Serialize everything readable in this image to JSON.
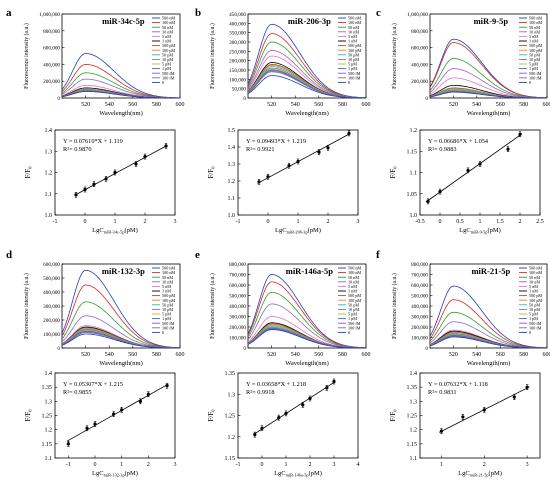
{
  "figure": {
    "spectra_ylabel": "Fluorescence intensity (a.u.)",
    "spectra_xlabel": "Wavelength(nm)",
    "fit_ylabel": "F/F",
    "fit_ylabel_sub": "0",
    "fit_xlabel_prefix": "LgC",
    "fit_xlabel_suffix": "(pM)"
  },
  "colors": {
    "legend_palette": [
      "#1f3fbf",
      "#d62728",
      "#2ca02c",
      "#9467bd",
      "#e377c2",
      "#000000",
      "#8c564b",
      "#ff7f0e",
      "#17becf",
      "#7f7f7f",
      "#bcbd22",
      "#1f77b4",
      "#aa40ff",
      "#777777"
    ]
  },
  "legend_levels": [
    "500 nM",
    "100 nM",
    "50 nM",
    "10 nM",
    "5 nM",
    "1 nM",
    "500 pM",
    "100 pM",
    "50 pM",
    "10 pM",
    "5 pM",
    "1 pM",
    "500 fM",
    "100 fM",
    "0"
  ],
  "chart_data": [
    {
      "panel": "a",
      "title": "miR-34c-5p",
      "type": "line",
      "x": [
        500,
        600
      ],
      "xticks": [
        520,
        540,
        560,
        580,
        600
      ],
      "ylim": [
        0,
        1000000
      ],
      "yticks": [
        "0",
        "200,000",
        "400,000",
        "600,000",
        "800,000",
        "1,000,000"
      ],
      "peak_x": 520,
      "peaks": [
        530000,
        400000,
        300000,
        225000,
        150000,
        120000,
        105000,
        100000,
        95000,
        90000,
        86000,
        84000,
        82000,
        80000,
        78000
      ]
    },
    {
      "panel": "b",
      "title": "miR-206-3p",
      "type": "line",
      "x": [
        500,
        600
      ],
      "xticks": [
        520,
        540,
        560,
        580,
        600
      ],
      "ylim": [
        0,
        450000
      ],
      "yticks": [
        "0",
        "50,000",
        "100,000",
        "150,000",
        "200,000",
        "250,000",
        "300,000",
        "350,000",
        "400,000",
        "450,000"
      ],
      "peak_x": 520,
      "peaks": [
        395000,
        345000,
        300000,
        255000,
        225000,
        190000,
        180000,
        175000,
        168000,
        160000,
        155000,
        150000,
        145000,
        140000,
        120000
      ]
    },
    {
      "panel": "c",
      "title": "miR-9-5p",
      "type": "line",
      "x": [
        500,
        600
      ],
      "xticks": [
        520,
        540,
        560,
        580,
        600
      ],
      "ylim": [
        0,
        1000000
      ],
      "yticks": [
        "0",
        "200,000",
        "400,000",
        "600,000",
        "800,000",
        "1,000,000"
      ],
      "peak_x": 520,
      "peaks": [
        700000,
        660000,
        470000,
        350000,
        240000,
        150000,
        120000,
        110000,
        100000,
        92000,
        85000,
        80000,
        76000,
        72000,
        70000
      ]
    },
    {
      "panel": "a",
      "type": "scatter",
      "x": [
        -0.3,
        0,
        0.3,
        0.7,
        1,
        1.7,
        2,
        2.7
      ],
      "y": [
        1.095,
        1.12,
        1.145,
        1.17,
        1.2,
        1.24,
        1.275,
        1.325
      ],
      "xticks": [
        -1,
        0,
        1,
        2,
        3
      ],
      "xlim": [
        -1,
        3
      ],
      "ylim": [
        1.0,
        1.4
      ],
      "yticks": [
        1.0,
        1.1,
        1.2,
        1.3,
        1.4
      ],
      "equation": "Y = 0.07610*X + 1.119",
      "r2": "R²= 0.9870",
      "subscript": "miR-34c-5p"
    },
    {
      "panel": "b",
      "type": "scatter",
      "x": [
        -0.3,
        0,
        0.7,
        1,
        1.7,
        2,
        2.7
      ],
      "y": [
        1.195,
        1.225,
        1.29,
        1.315,
        1.37,
        1.395,
        1.48
      ],
      "xticks": [
        -1,
        0,
        1,
        2,
        3
      ],
      "xlim": [
        -1,
        3
      ],
      "ylim": [
        1.0,
        1.5
      ],
      "yticks": [
        1.0,
        1.1,
        1.2,
        1.3,
        1.4,
        1.5
      ],
      "equation": "Y = 0.09493*X + 1.219",
      "r2": "R²= 0.9921",
      "subscript": "miR-206-3p"
    },
    {
      "panel": "c",
      "type": "scatter",
      "x": [
        -0.3,
        0,
        0.7,
        1,
        1.7,
        2
      ],
      "y": [
        1.032,
        1.055,
        1.105,
        1.12,
        1.155,
        1.19
      ],
      "xticks": [
        -0.5,
        0,
        0.5,
        1,
        1.5,
        2,
        2.5
      ],
      "xlim": [
        -0.5,
        2.5
      ],
      "ylim": [
        1.0,
        1.2
      ],
      "yticks": [
        1.0,
        1.05,
        1.1,
        1.15,
        1.2
      ],
      "equation": "Y = 0.06686*X + 1.054",
      "r2": "R²= 0.9883",
      "subscript": "miR-9-5p"
    },
    {
      "panel": "d",
      "title": "miR-132-3p",
      "type": "line",
      "x": [
        500,
        600
      ],
      "xticks": [
        520,
        540,
        560,
        580,
        600
      ],
      "ylim": [
        0,
        600000
      ],
      "yticks": [
        "0",
        "100,000",
        "200,000",
        "300,000",
        "400,000",
        "500,000",
        "600,000"
      ],
      "peak_x": 520,
      "peaks": [
        555000,
        450000,
        330000,
        230000,
        160000,
        150000,
        145000,
        140000,
        135000,
        130000,
        125000,
        120000,
        115000,
        110000,
        100000
      ]
    },
    {
      "panel": "e",
      "title": "miR-146a-5p",
      "type": "line",
      "x": [
        500,
        600
      ],
      "xticks": [
        520,
        540,
        560,
        580,
        600
      ],
      "ylim": [
        0,
        800000
      ],
      "yticks": [
        "0",
        "100,000",
        "200,000",
        "300,000",
        "400,000",
        "500,000",
        "600,000",
        "700,000",
        "800,000"
      ],
      "peak_x": 520,
      "peaks": [
        700000,
        630000,
        530000,
        420000,
        300000,
        240000,
        230000,
        220000,
        210000,
        200000,
        195000,
        190000,
        185000,
        180000,
        175000
      ]
    },
    {
      "panel": "f",
      "title": "miR-21-5p",
      "type": "line",
      "x": [
        500,
        600
      ],
      "xticks": [
        520,
        540,
        560,
        580,
        600
      ],
      "ylim": [
        0,
        800000
      ],
      "yticks": [
        "0",
        "100,000",
        "200,000",
        "300,000",
        "400,000",
        "500,000",
        "600,000",
        "700,000",
        "800,000"
      ],
      "peak_x": 520,
      "peaks": [
        590000,
        460000,
        340000,
        250000,
        170000,
        160000,
        150000,
        140000,
        135000,
        130000,
        125000,
        120000,
        115000,
        110000,
        105000
      ]
    },
    {
      "panel": "d",
      "type": "scatter",
      "x": [
        -1,
        -0.3,
        0,
        0.7,
        1,
        1.7,
        2,
        2.7
      ],
      "y": [
        1.15,
        1.205,
        1.22,
        1.255,
        1.27,
        1.3,
        1.325,
        1.355
      ],
      "xticks": [
        -1,
        0,
        1,
        2,
        3
      ],
      "xlim": [
        -1.5,
        3
      ],
      "ylim": [
        1.1,
        1.4
      ],
      "yticks": [
        1.1,
        1.15,
        1.2,
        1.25,
        1.3,
        1.35,
        1.4
      ],
      "equation": "Y = 0.05307*X + 1.215",
      "r2": "R²= 0.9855",
      "subscript": "miR-132-3p"
    },
    {
      "panel": "e",
      "type": "scatter",
      "x": [
        -0.3,
        0,
        0.7,
        1,
        1.7,
        2,
        2.7,
        3
      ],
      "y": [
        1.205,
        1.22,
        1.245,
        1.255,
        1.275,
        1.29,
        1.315,
        1.33
      ],
      "xticks": [
        -1,
        0,
        1,
        2,
        3,
        4
      ],
      "xlim": [
        -1,
        4
      ],
      "ylim": [
        1.15,
        1.35
      ],
      "yticks": [
        1.15,
        1.2,
        1.25,
        1.3,
        1.35
      ],
      "equation": "Y = 0.03658*X + 1.218",
      "r2": "R²= 0.9918",
      "subscript": "miR-146a-5p"
    },
    {
      "panel": "f",
      "type": "scatter",
      "x": [
        1,
        1.5,
        2,
        2.7,
        3
      ],
      "y": [
        1.195,
        1.245,
        1.27,
        1.315,
        1.35
      ],
      "xticks": [
        1,
        2,
        3
      ],
      "xlim": [
        0.5,
        3.3
      ],
      "ylim": [
        1.1,
        1.4
      ],
      "yticks": [
        1.1,
        1.15,
        1.2,
        1.25,
        1.3,
        1.35,
        1.4
      ],
      "equation": "Y = 0.07632*X + 1.118",
      "r2": "R²= 0.9831",
      "subscript": "miR-21-5p"
    }
  ]
}
